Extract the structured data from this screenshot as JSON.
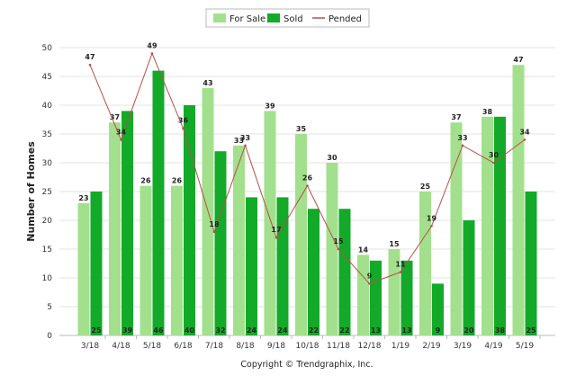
{
  "chart_data": {
    "type": "bar",
    "categories": [
      "3/18",
      "4/18",
      "5/18",
      "6/18",
      "7/18",
      "8/18",
      "9/18",
      "10/18",
      "11/18",
      "12/18",
      "1/19",
      "2/19",
      "3/19",
      "4/19",
      "5/19"
    ],
    "series": [
      {
        "name": "For Sale",
        "type": "bar",
        "color": "#a3e08d",
        "values": [
          23,
          37,
          26,
          26,
          43,
          33,
          39,
          35,
          30,
          14,
          15,
          25,
          37,
          38,
          47
        ]
      },
      {
        "name": "Sold",
        "type": "bar",
        "color": "#12aa28",
        "values": [
          25,
          39,
          46,
          40,
          32,
          24,
          24,
          22,
          22,
          13,
          13,
          9,
          20,
          38,
          25
        ]
      },
      {
        "name": "Pended",
        "type": "line",
        "color": "#b5504a",
        "values": [
          47,
          34,
          49,
          36,
          18,
          33,
          17,
          26,
          15,
          9,
          11,
          19,
          33,
          30,
          34
        ]
      }
    ],
    "ylabel": "Number of Homes",
    "xlabel": "",
    "ylim": [
      0,
      50
    ],
    "yticks": [
      0,
      5,
      10,
      15,
      20,
      25,
      30,
      35,
      40,
      45,
      50
    ],
    "grid": true,
    "legend_position": "top-center"
  },
  "footer": "Copyright © Trendgraphix, Inc."
}
